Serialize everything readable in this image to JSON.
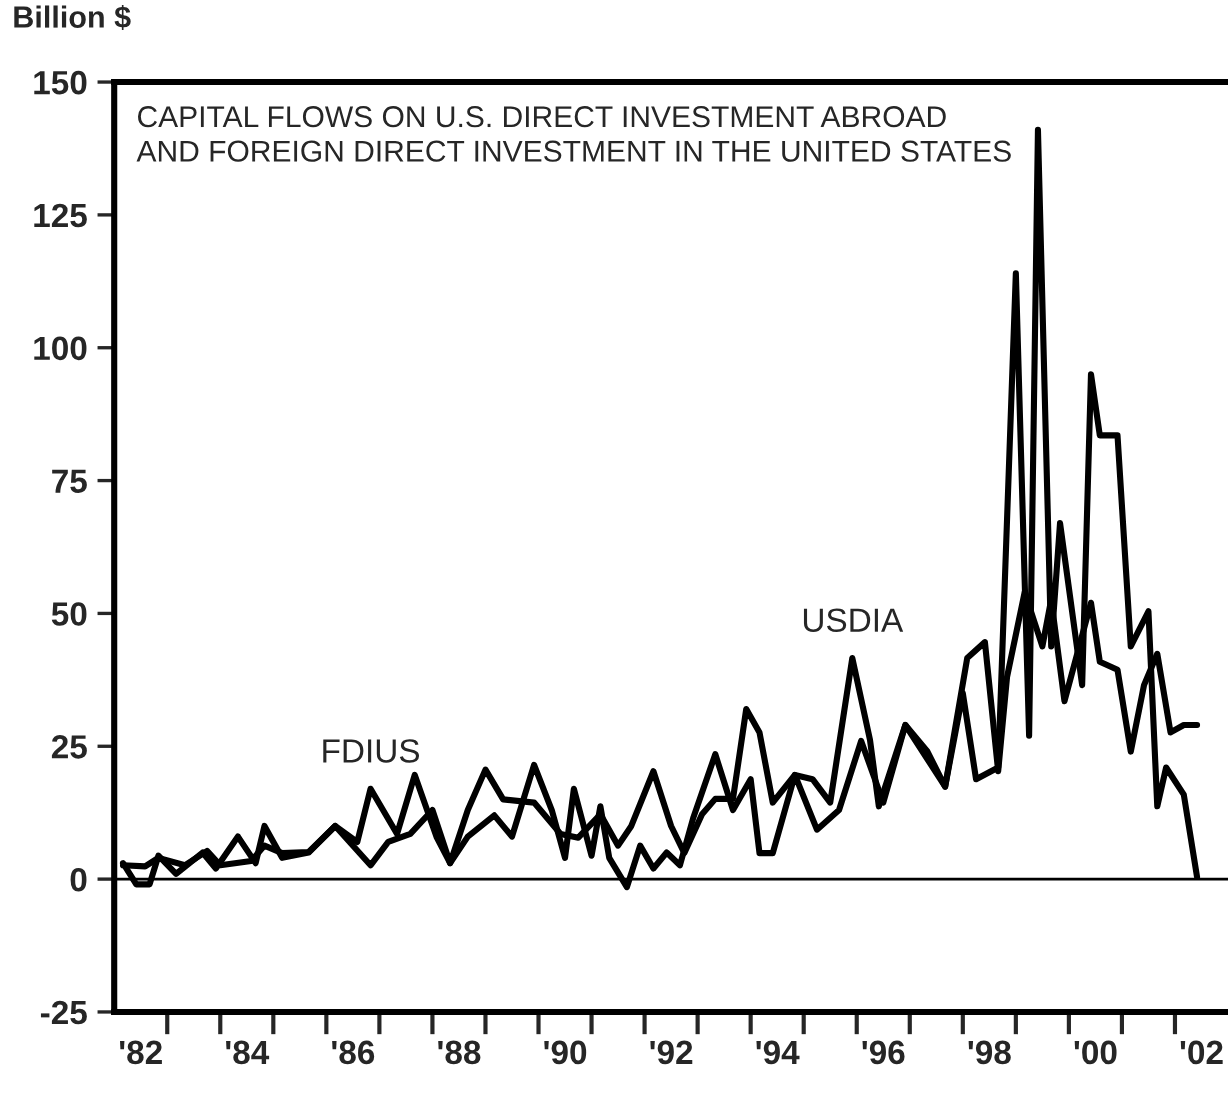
{
  "chart_data": {
    "type": "line",
    "title": "CAPITAL FLOWS ON U.S. DIRECT INVESTMENT ABROAD\nAND FOREIGN DIRECT INVESTMENT IN THE UNITED STATES",
    "ylabel": "Billion $",
    "series": [
      {
        "color": "#000000",
        "x": [
          "1982-03",
          "1982-06",
          "1982-09",
          "1982-11",
          "1983-03",
          "1983-09",
          "1983-12",
          "1984-05",
          "1984-09",
          "1984-11",
          "1985-03",
          "1985-09",
          "1986-03",
          "1986-08",
          "1986-11",
          "1987-05",
          "1987-09",
          "1988-02",
          "1988-05",
          "1988-09",
          "1989-03",
          "1989-07",
          "1989-12",
          "1990-04",
          "1990-07",
          "1990-09",
          "1991-01",
          "1991-03",
          "1991-05",
          "1991-09",
          "1991-12",
          "1992-03",
          "1992-06",
          "1992-09",
          "1992-12",
          "1993-05",
          "1993-09",
          "1994-01",
          "1994-03",
          "1994-06",
          "1994-11",
          "1995-04",
          "1995-09",
          "1996-02",
          "1996-07",
          "1996-12",
          "1997-09",
          "1998-01",
          "1998-04",
          "1998-09",
          "1999-01",
          "1999-04",
          "1999-06",
          "1999-09",
          "1999-11",
          "2000-04",
          "2000-06",
          "2000-08",
          "2000-12",
          "2001-03",
          "2001-07",
          "2001-09",
          "2001-11",
          "2002-03",
          "2002-06"
        ],
        "values": [
          3,
          -1,
          -1,
          4.4,
          1,
          5,
          2,
          8,
          3,
          10,
          4,
          5,
          10,
          7,
          17,
          8.5,
          19.6,
          7.8,
          3,
          8,
          12,
          8,
          21.5,
          13,
          4,
          17,
          4.4,
          13.7,
          4,
          -1.5,
          6.3,
          2,
          5,
          2.6,
          11.5,
          23.5,
          13,
          18.8,
          4.9,
          4.9,
          19.6,
          9.3,
          13,
          26,
          14.4,
          29,
          17.4,
          35,
          18.8,
          21,
          114,
          27,
          141,
          43.8,
          67,
          36.5,
          95,
          83.5,
          83.5,
          43.8,
          50.4,
          13.7,
          21,
          15.9,
          0.4
        ]
      },
      {
        "color": "#000000",
        "x": [
          "1982-03",
          "1982-08",
          "1982-11",
          "1983-05",
          "1983-10",
          "1984-01",
          "1984-08",
          "1984-11",
          "1985-03",
          "1985-09",
          "1986-03",
          "1986-11",
          "1987-03",
          "1987-08",
          "1988-01",
          "1988-05",
          "1988-09",
          "1989-01",
          "1989-05",
          "1989-12",
          "1990-06",
          "1990-10",
          "1991-03",
          "1991-07",
          "1991-10",
          "1992-03",
          "1992-07",
          "1992-10",
          "1993-02",
          "1993-05",
          "1993-09",
          "1993-12",
          "1994-03",
          "1994-06",
          "1994-11",
          "1995-03",
          "1995-07",
          "1995-12",
          "1996-04",
          "1996-06",
          "1996-12",
          "1997-05",
          "1997-09",
          "1998-02",
          "1998-06",
          "1998-09",
          "1998-11",
          "1999-03",
          "1999-07",
          "1999-09",
          "1999-12",
          "2000-06",
          "2000-08",
          "2000-12",
          "2001-03",
          "2001-06",
          "2001-09",
          "2001-12",
          "2002-03",
          "2002-06"
        ],
        "values": [
          2.6,
          2.4,
          4,
          2.6,
          5.3,
          2.6,
          3.4,
          6.3,
          4.9,
          5.1,
          10,
          2.6,
          7,
          8.5,
          13,
          3,
          13,
          20.6,
          15,
          14.4,
          8.5,
          7.8,
          12.2,
          6.3,
          10,
          20.3,
          10,
          4.9,
          12.2,
          15.1,
          15.1,
          32,
          27.6,
          14.4,
          19.6,
          18.8,
          14.4,
          41.6,
          26.2,
          13.7,
          29,
          24,
          17.4,
          41.6,
          44.6,
          20.3,
          38,
          54,
          43.8,
          52.6,
          33.5,
          52,
          40.9,
          39.4,
          24,
          36.5,
          42.4,
          27.6,
          29,
          29
        ]
      }
    ],
    "annotations": [
      {
        "text": "FDIUS",
        "x": "1986-11",
        "y": 17
      },
      {
        "text": "USDIA",
        "x": "1995-12",
        "y": 41.6
      }
    ],
    "xlim": [
      "1982-01",
      "2003-01"
    ],
    "xticks": [
      {
        "value": "1983-01",
        "label": null
      },
      {
        "value": "1984-01",
        "label": null
      },
      {
        "value": "1985-01",
        "label": null
      },
      {
        "value": "1986-01",
        "label": null
      },
      {
        "value": "1987-01",
        "label": null
      },
      {
        "value": "1988-01",
        "label": null
      },
      {
        "value": "1989-01",
        "label": null
      },
      {
        "value": "1990-01",
        "label": null
      },
      {
        "value": "1991-01",
        "label": null
      },
      {
        "value": "1992-01",
        "label": null
      },
      {
        "value": "1993-01",
        "label": null
      },
      {
        "value": "1994-01",
        "label": null
      },
      {
        "value": "1995-01",
        "label": null
      },
      {
        "value": "1996-01",
        "label": null
      },
      {
        "value": "1997-01",
        "label": null
      },
      {
        "value": "1998-01",
        "label": null
      },
      {
        "value": "1999-01",
        "label": null
      },
      {
        "value": "2000-01",
        "label": null
      },
      {
        "value": "2001-01",
        "label": null
      },
      {
        "value": "2002-01",
        "label": null
      },
      {
        "value": "1982-07",
        "label": "'82"
      },
      {
        "value": "1984-07",
        "label": "'84"
      },
      {
        "value": "1986-07",
        "label": "'86"
      },
      {
        "value": "1988-07",
        "label": "'88"
      },
      {
        "value": "1990-07",
        "label": "'90"
      },
      {
        "value": "1992-07",
        "label": "'92"
      },
      {
        "value": "1994-07",
        "label": "'94"
      },
      {
        "value": "1996-07",
        "label": "'96"
      },
      {
        "value": "1998-07",
        "label": "'98"
      },
      {
        "value": "2000-07",
        "label": "'00"
      },
      {
        "value": "2002-07",
        "label": "'02"
      }
    ],
    "ylim": [
      -25,
      150
    ],
    "yticks": [
      -25,
      0,
      25,
      50,
      75,
      100,
      125,
      150
    ],
    "ref_lines": [
      {
        "axis": "y",
        "value": 0,
        "color": "#000000"
      }
    ],
    "grid": false,
    "legend": false,
    "marker": "none",
    "line_style": "solid"
  }
}
